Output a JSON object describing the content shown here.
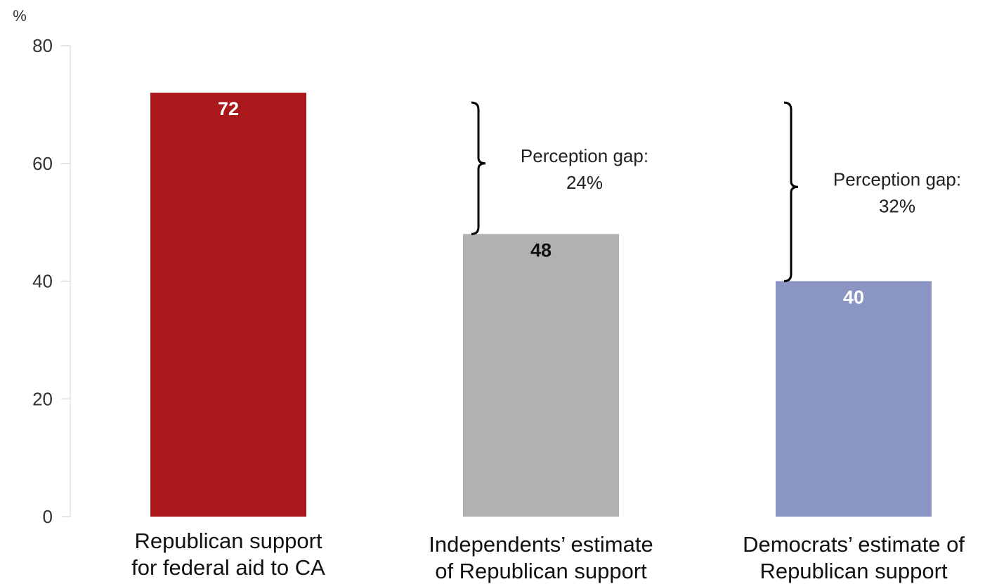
{
  "chart_data": {
    "type": "bar",
    "ylabel": "%",
    "ylim": [
      0,
      80
    ],
    "yticks": [
      0,
      20,
      40,
      60,
      80
    ],
    "grid": false,
    "legend": "none",
    "categories": [
      [
        "Republican support",
        "for federal aid to CA"
      ],
      [
        "Independents’ estimate",
        "of Republican support"
      ],
      [
        "Democrats’ estimate of",
        "Republican support"
      ]
    ],
    "values": [
      72,
      48,
      40
    ],
    "value_labels": [
      "72",
      "48",
      "40"
    ],
    "bar_colors": [
      "#ab181b",
      "#b1b1b1",
      "#8b95c3"
    ],
    "label_colors": [
      "#ffffff",
      "#111111",
      "#ffffff"
    ],
    "annotations": [
      {
        "type": "bracket",
        "category_index": 1,
        "from": 72,
        "to": 48,
        "text": [
          "Perception gap:",
          "24%"
        ]
      },
      {
        "type": "bracket",
        "category_index": 2,
        "from": 72,
        "to": 40,
        "text": [
          "Perception gap:",
          "32%"
        ]
      }
    ]
  }
}
